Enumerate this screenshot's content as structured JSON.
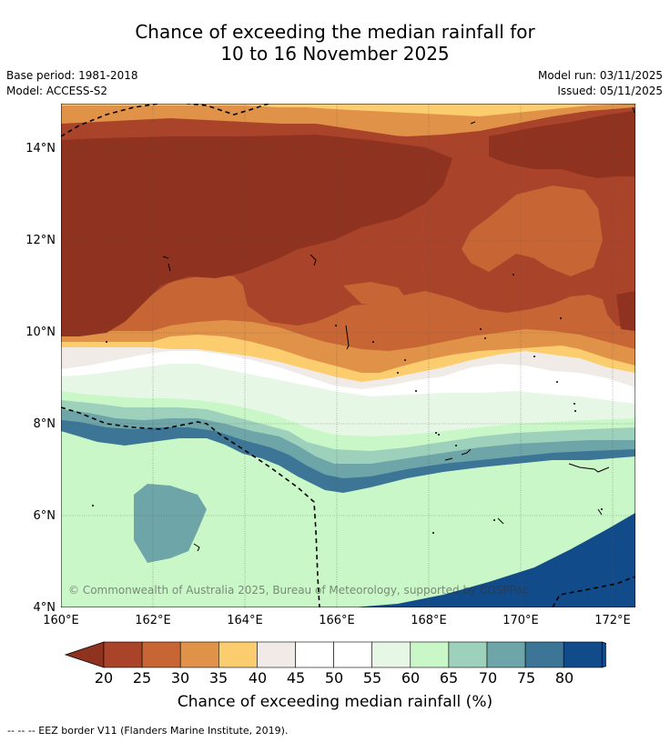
{
  "title": {
    "line1": "Chance of exceeding the median rainfall for",
    "line2": "10 to 16 November 2025"
  },
  "meta": {
    "base_period": "Base period: 1981-2018",
    "model": "Model: ACCESS-S2",
    "model_run": "Model run: 03/11/2025",
    "issued": "Issued: 05/11/2025"
  },
  "map": {
    "lon_range": [
      160,
      172.5
    ],
    "lat_range": [
      4,
      15
    ],
    "x_ticks": [
      "160°E",
      "162°E",
      "164°E",
      "166°E",
      "168°E",
      "170°E",
      "172°E"
    ],
    "y_ticks": [
      "14°N",
      "12°N",
      "10°N",
      "8°N",
      "6°N",
      "4°N"
    ],
    "copyright": "© Commonwealth of Australia 2025, Bureau of Meteorology, supported by COSPPac",
    "colors": {
      "c20": "#8f3320",
      "c25": "#a9432a",
      "c30": "#c86535",
      "c35": "#e09248",
      "c40": "#fccd6e",
      "c45": "#f0ebe7",
      "c50": "#ffffff",
      "c55": "#ffffff",
      "c60": "#e6f7e6",
      "c65": "#caf7c7",
      "c70": "#9ed1bb",
      "c75": "#6ea5a8",
      "c80": "#3d7596",
      "cmax": "#124b89"
    }
  },
  "colorbar": {
    "ticks": [
      "20",
      "25",
      "30",
      "35",
      "40",
      "45",
      "50",
      "55",
      "60",
      "65",
      "70",
      "75",
      "80"
    ],
    "colors": [
      "#c86535",
      "#e09248",
      "#fccd6e",
      "#f0ebe7",
      "#ffffff",
      "#ffffff",
      "#e6f7e6",
      "#caf7c7",
      "#9ed1bb",
      "#6ea5a8",
      "#3d7596",
      "#124b89"
    ],
    "first_segment": "#a9432a",
    "under_color": "#8f3320",
    "over_color": "#124b89",
    "label": "Chance of exceeding median rainfall (%)"
  },
  "footer": "--  --  -- EEZ border V11 (Flanders Marine Institute, 2019)."
}
